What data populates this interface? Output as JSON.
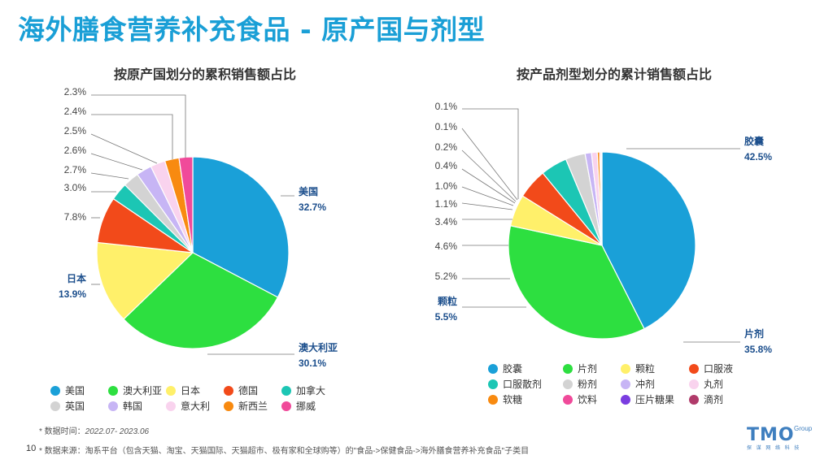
{
  "page": {
    "title": "海外膳食营养补充食品 - 原产国与剂型",
    "page_number": "10",
    "footnote_time_label": "* 数据时间：",
    "footnote_time_value": "2022.07- 2023.06",
    "footnote_source": "* 数据来源：淘系平台（包含天猫、淘宝、天猫国际、天猫超市、极有家和全球购等）的\"食品->保健食品->海外膳食营养补充食品\"子类目",
    "logo_text": "TMO",
    "logo_group": "Group",
    "logo_sub": "探 谋 网 络 科 技"
  },
  "chart_data": [
    {
      "type": "pie",
      "title": "按原产国划分的累积销售额占比",
      "unit": "%",
      "slices": [
        {
          "label": "美国",
          "value": 32.7,
          "color": "#1aa0d8"
        },
        {
          "label": "澳大利亚",
          "value": 30.1,
          "color": "#2ddf40"
        },
        {
          "label": "日本",
          "value": 13.9,
          "color": "#fff06a"
        },
        {
          "label": "德国",
          "value": 7.8,
          "color": "#f24a1a"
        },
        {
          "label": "加拿大",
          "value": 3.0,
          "color": "#1cc6b4"
        },
        {
          "label": "英国",
          "value": 2.7,
          "color": "#d3d3d3"
        },
        {
          "label": "韩国",
          "value": 2.6,
          "color": "#c7b5f5"
        },
        {
          "label": "意大利",
          "value": 2.5,
          "color": "#f9d3ee"
        },
        {
          "label": "新西兰",
          "value": 2.4,
          "color": "#f88a10"
        },
        {
          "label": "挪威",
          "value": 2.3,
          "color": "#f04a9a"
        }
      ],
      "labels": [
        {
          "text": "美国",
          "value": "32.7%",
          "bold": true
        },
        {
          "text": "澳大利亚",
          "value": "30.1%",
          "bold": true
        },
        {
          "text": "日本",
          "value": "13.9%",
          "bold": true
        },
        {
          "value": "7.8%"
        },
        {
          "value": "3.0%"
        },
        {
          "value": "2.7%"
        },
        {
          "value": "2.6%"
        },
        {
          "value": "2.5%"
        },
        {
          "value": "2.4%"
        },
        {
          "value": "2.3%"
        }
      ],
      "legend": [
        "美国",
        "澳大利亚",
        "日本",
        "德国",
        "加拿大",
        "英国",
        "韩国",
        "意大利",
        "新西兰",
        "挪威"
      ],
      "legend_position": "bottom"
    },
    {
      "type": "pie",
      "title": "按产品剂型划分的累计销售额占比",
      "unit": "%",
      "slices": [
        {
          "label": "胶囊",
          "value": 42.5,
          "color": "#1aa0d8"
        },
        {
          "label": "片剂",
          "value": 35.8,
          "color": "#2ddf40"
        },
        {
          "label": "颗粒",
          "value": 5.5,
          "color": "#fff06a"
        },
        {
          "label": "口服液",
          "value": 5.2,
          "color": "#f24a1a"
        },
        {
          "label": "口服散剂",
          "value": 4.6,
          "color": "#1cc6b4"
        },
        {
          "label": "粉剂",
          "value": 3.4,
          "color": "#d3d3d3"
        },
        {
          "label": "冲剂",
          "value": 1.1,
          "color": "#c7b5f5"
        },
        {
          "label": "丸剂",
          "value": 1.0,
          "color": "#f9d3ee"
        },
        {
          "label": "软糖",
          "value": 0.4,
          "color": "#f88a10"
        },
        {
          "label": "饮料",
          "value": 0.2,
          "color": "#f04a9a"
        },
        {
          "label": "压片糖果",
          "value": 0.1,
          "color": "#7a3de0"
        },
        {
          "label": "滴剂",
          "value": 0.1,
          "color": "#b03a6a"
        }
      ],
      "labels": [
        {
          "text": "胶囊",
          "value": "42.5%",
          "bold": true
        },
        {
          "text": "片剂",
          "value": "35.8%",
          "bold": true
        },
        {
          "text": "颗粒",
          "value": "5.5%",
          "bold": true
        },
        {
          "value": "5.2%"
        },
        {
          "value": "4.6%"
        },
        {
          "value": "3.4%"
        },
        {
          "value": "1.1%"
        },
        {
          "value": "1.0%"
        },
        {
          "value": "0.4%"
        },
        {
          "value": "0.2%"
        },
        {
          "value": "0.1%"
        },
        {
          "value": "0.1%"
        }
      ],
      "legend": [
        "胶囊",
        "片剂",
        "颗粒",
        "口服液",
        "口服散剂",
        "粉剂",
        "冲剂",
        "丸剂",
        "软糖",
        "饮料",
        "压片糖果",
        "滴剂"
      ],
      "legend_position": "bottom"
    }
  ]
}
